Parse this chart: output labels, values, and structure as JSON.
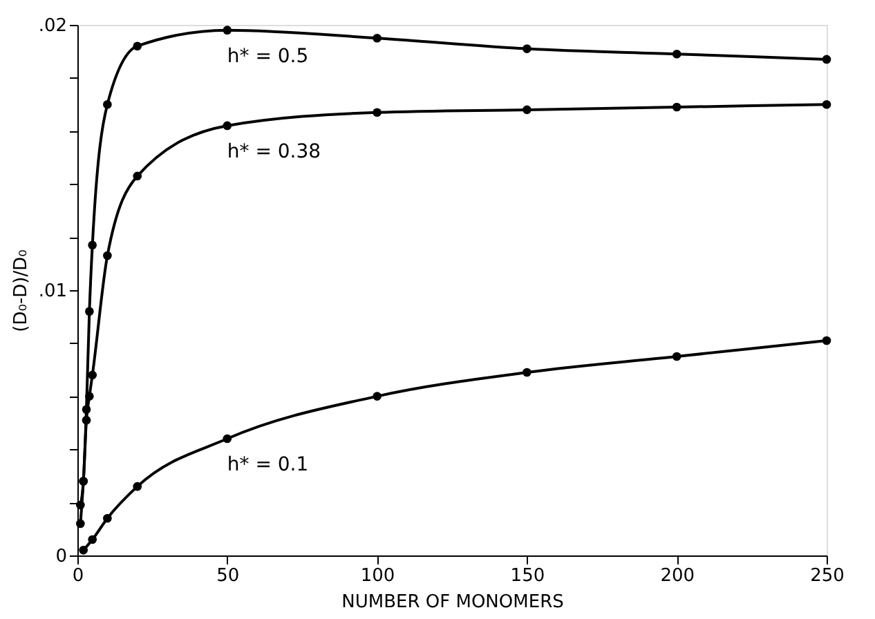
{
  "chart_data": {
    "type": "line",
    "xlabel": "NUMBER OF MONOMERS",
    "ylabel": "(D₀-D)/D₀",
    "series": [
      {
        "name": "h* = 0.5",
        "color": "#000000",
        "x": [
          1,
          2,
          3,
          4,
          5,
          10,
          20,
          50,
          100,
          150,
          200,
          250
        ],
        "values": [
          0.0019,
          0.0028,
          0.0055,
          0.0092,
          0.0117,
          0.017,
          0.0192,
          0.0198,
          0.0195,
          0.0191,
          0.0189,
          0.0187
        ]
      },
      {
        "name": "h* = 0.38",
        "color": "#000000",
        "x": [
          1,
          2,
          3,
          4,
          5,
          10,
          20,
          50,
          100,
          150,
          200,
          250
        ],
        "values": [
          0.0012,
          0.0028,
          0.0051,
          0.006,
          0.0068,
          0.0113,
          0.0143,
          0.0162,
          0.0167,
          0.0168,
          0.0169,
          0.017
        ]
      },
      {
        "name": "h* = 0.1",
        "color": "#000000",
        "x": [
          2,
          5,
          10,
          20,
          50,
          100,
          150,
          200,
          250
        ],
        "values": [
          0.0002,
          0.0006,
          0.0014,
          0.0026,
          0.0044,
          0.006,
          0.0069,
          0.0075,
          0.0081
        ]
      }
    ],
    "xlim": [
      0,
      250
    ],
    "xticks": [
      0,
      50,
      100,
      150,
      200,
      250
    ],
    "ylim": [
      0,
      0.02
    ],
    "yticks": [
      {
        "value": 0,
        "label": "0"
      },
      {
        "value": 0.002,
        "label": null
      },
      {
        "value": 0.004,
        "label": null
      },
      {
        "value": 0.006,
        "label": null
      },
      {
        "value": 0.008,
        "label": null
      },
      {
        "value": 0.01,
        "label": ".01"
      },
      {
        "value": 0.012,
        "label": null
      },
      {
        "value": 0.014,
        "label": null
      },
      {
        "value": 0.016,
        "label": null
      },
      {
        "value": 0.018,
        "label": null
      },
      {
        "value": 0.02,
        "label": ".02"
      }
    ],
    "marker": "circle",
    "line_style": "solid",
    "grid": false
  }
}
